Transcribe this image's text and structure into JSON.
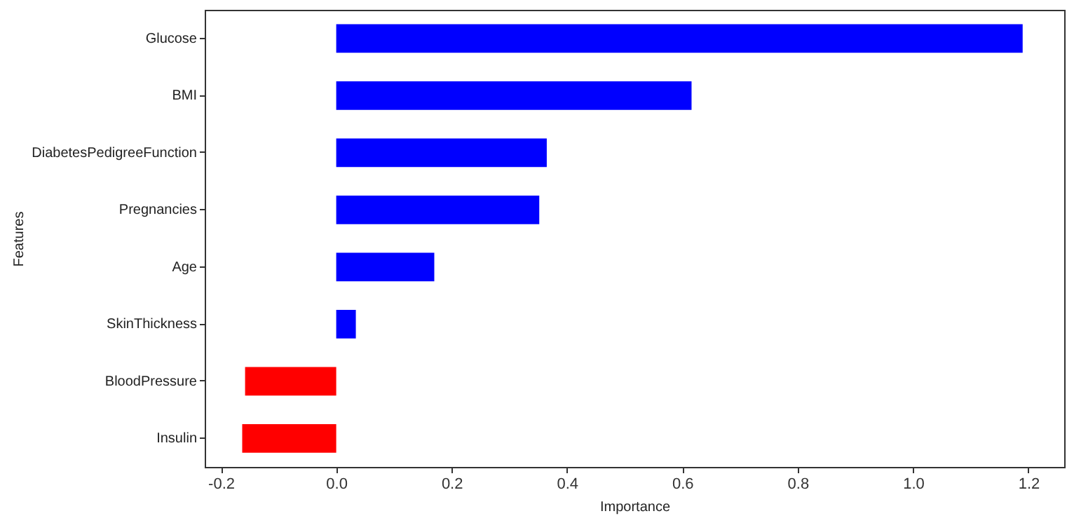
{
  "chart_data": {
    "type": "bar",
    "orientation": "horizontal",
    "xlabel": "Importance",
    "ylabel": "Features",
    "categories": [
      "Glucose",
      "BMI",
      "DiabetesPedigreeFunction",
      "Pregnancies",
      "Age",
      "SkinThickness",
      "BloodPressure",
      "Insulin"
    ],
    "values": [
      1.19,
      0.616,
      0.365,
      0.352,
      0.17,
      0.034,
      -0.158,
      -0.163
    ],
    "colors": [
      "#0000ff",
      "#0000ff",
      "#0000ff",
      "#0000ff",
      "#0000ff",
      "#0000ff",
      "#ff0000",
      "#ff0000"
    ],
    "xlim": [
      -0.228,
      1.262
    ],
    "xticks": [
      {
        "value": -0.2,
        "label": "-0.2"
      },
      {
        "value": 0,
        "label": "0.0"
      },
      {
        "value": 0.2,
        "label": "0.2"
      },
      {
        "value": 0.4,
        "label": "0.4"
      },
      {
        "value": 0.6,
        "label": "0.6"
      },
      {
        "value": 0.8,
        "label": "0.8"
      },
      {
        "value": 1,
        "label": "1.0"
      },
      {
        "value": 1.2,
        "label": "1.2"
      }
    ],
    "grid": false
  }
}
